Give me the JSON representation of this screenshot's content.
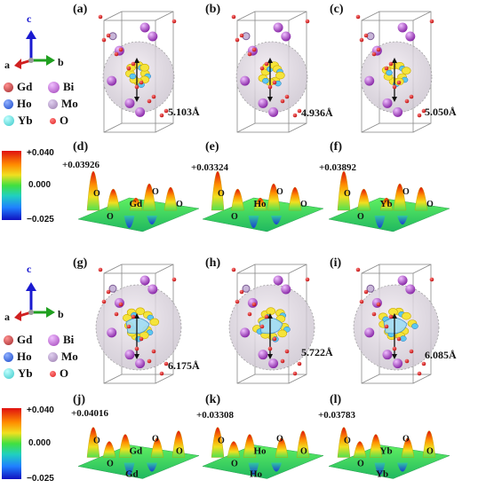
{
  "axes": {
    "c": "c",
    "a": "a",
    "b": "b"
  },
  "legend": {
    "items": [
      {
        "label": "Gd",
        "color": "#a0282a"
      },
      {
        "label": "Bi",
        "color": "#a040b8"
      },
      {
        "label": "Ho",
        "color": "#1848c8"
      },
      {
        "label": "Mo",
        "color": "#9c7eb0"
      },
      {
        "label": "Yb",
        "color": "#38c8c8"
      },
      {
        "label": "O",
        "color": "#e02020"
      }
    ]
  },
  "colorbar": {
    "max": "+0.040",
    "mid": "0.000",
    "min": "−0.025"
  },
  "top": {
    "panels": [
      {
        "label": "(a)",
        "distance": "5.103Å"
      },
      {
        "label": "(b)",
        "distance": "4.936Å"
      },
      {
        "label": "(c)",
        "distance": "5.050Å"
      }
    ],
    "surfaces": [
      {
        "label": "(d)",
        "peak": "+0.03926",
        "element": "Gd",
        "o": "O"
      },
      {
        "label": "(e)",
        "peak": "+0.03324",
        "element": "Ho",
        "o": "O"
      },
      {
        "label": "(f)",
        "peak": "+0.03892",
        "element": "Yb",
        "o": "O"
      }
    ]
  },
  "bottom": {
    "panels": [
      {
        "label": "(g)",
        "distance": "6.175Å"
      },
      {
        "label": "(h)",
        "distance": "5.722Å"
      },
      {
        "label": "(i)",
        "distance": "6.085Å"
      }
    ],
    "surfaces": [
      {
        "label": "(j)",
        "peak": "+0.04016",
        "element": "Gd",
        "o": "O"
      },
      {
        "label": "(k)",
        "peak": "+0.03308",
        "element": "Ho",
        "o": "O"
      },
      {
        "label": "(l)",
        "peak": "+0.03783",
        "element": "Yb",
        "o": "O"
      }
    ]
  }
}
